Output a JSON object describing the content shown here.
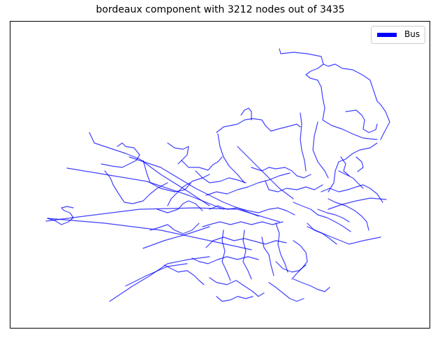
{
  "figure": {
    "title": "bordeaux component with 3212 nodes out of 3435"
  },
  "legend": {
    "entries": [
      {
        "label": "Bus",
        "color": "#0000ff"
      }
    ]
  },
  "network": {
    "mode": "Bus",
    "edge_color": "#0000ff",
    "axes_visible": false
  }
}
